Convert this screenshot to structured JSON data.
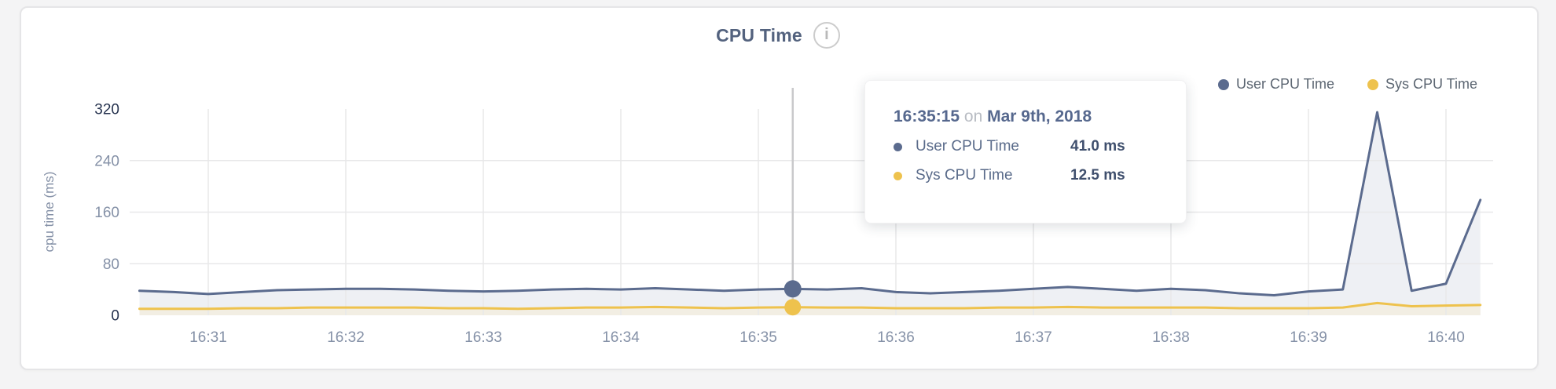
{
  "page": {
    "title": "CPU Time",
    "info_icon": "i"
  },
  "legend": {
    "items": [
      {
        "label": "User CPU Time",
        "color": "#5b6b8e"
      },
      {
        "label": "Sys CPU Time",
        "color": "#eec24d"
      }
    ]
  },
  "tooltip": {
    "time": "16:35:15",
    "connector": "on",
    "date": "Mar 9th, 2018",
    "rows": [
      {
        "label": "User CPU Time",
        "value": "41.0 ms",
        "color": "#5b6b8e"
      },
      {
        "label": "Sys CPU Time",
        "value": "12.5 ms",
        "color": "#eec24d"
      }
    ]
  },
  "chart_data": {
    "type": "area",
    "title": "CPU Time",
    "xlabel": "",
    "ylabel": "cpu time (ms)",
    "ylim": [
      0,
      320
    ],
    "y_ticks": [
      0,
      80,
      160,
      240,
      320
    ],
    "x_ticks": [
      "16:31",
      "16:32",
      "16:33",
      "16:34",
      "16:35",
      "16:36",
      "16:37",
      "16:38",
      "16:39",
      "16:40"
    ],
    "x_start": "16:30:30",
    "interval_seconds": 15,
    "grid": true,
    "legend_position": "top-right",
    "series": [
      {
        "name": "User CPU Time",
        "color": "#5b6b8e",
        "fill": "#eef0f4",
        "values": [
          38,
          36,
          33,
          36,
          39,
          40,
          41,
          41,
          40,
          38,
          37,
          38,
          40,
          41,
          40,
          42,
          40,
          38,
          40,
          41,
          40,
          42,
          36,
          34,
          36,
          38,
          41,
          44,
          41,
          38,
          41,
          39,
          34,
          31,
          37,
          40,
          315,
          38,
          49,
          179
        ]
      },
      {
        "name": "Sys CPU Time",
        "color": "#eec24d",
        "fill": "#f2eee3",
        "values": [
          10,
          10,
          10,
          11,
          11,
          12,
          12,
          12,
          12,
          11,
          11,
          10,
          11,
          12,
          12,
          13,
          12,
          11,
          12,
          12.5,
          12,
          12,
          11,
          11,
          11,
          12,
          12,
          13,
          12,
          12,
          12,
          12,
          11,
          11,
          11,
          12,
          19,
          14,
          15,
          16
        ]
      }
    ],
    "highlight": {
      "time": "16:35:15",
      "date": "Mar 9th, 2018",
      "index": 19,
      "values": {
        "user": 41.0,
        "sys": 12.5
      }
    },
    "colors": {
      "grid": "#e8e8e9",
      "crosshair": "#c9c9cb",
      "tick_strong": "#26334f",
      "tick_muted": "#8591a7",
      "axis_label": "#8591a7"
    }
  }
}
